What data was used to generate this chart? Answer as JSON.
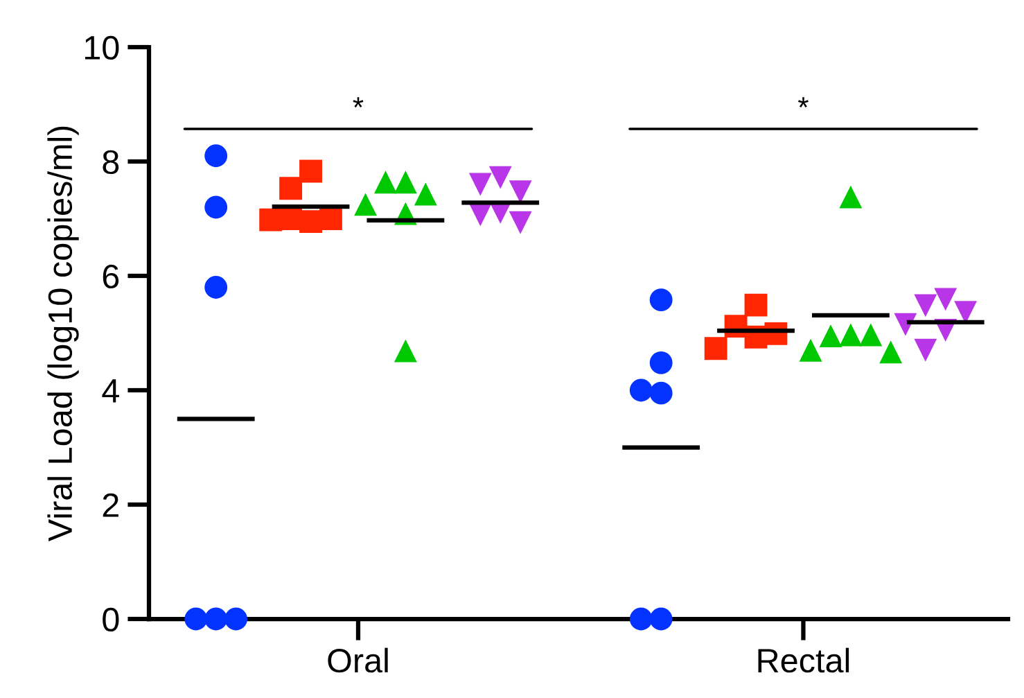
{
  "chart_data": {
    "type": "scatter",
    "ylabel": "Viral Load (log10 copies/ml)",
    "categories": [
      "Oral",
      "Rectal"
    ],
    "ylim": [
      0,
      10
    ],
    "yticks": [
      0,
      2,
      4,
      6,
      8,
      10
    ],
    "grid": false,
    "legend": false,
    "annotations": [
      "*",
      "*"
    ],
    "series": [
      {
        "color": "#0433ff",
        "marker": "circle",
        "x": [
          "Oral",
          "Oral",
          "Oral",
          "Oral",
          "Oral",
          "Oral",
          "Rectal",
          "Rectal",
          "Rectal",
          "Rectal",
          "Rectal",
          "Rectal"
        ],
        "values": [
          8.1,
          7.2,
          5.8,
          0,
          0,
          0,
          5.58,
          4.48,
          3.95,
          4.0,
          0,
          0
        ]
      },
      {
        "color": "#ff2600",
        "marker": "square",
        "x": [
          "Oral",
          "Oral",
          "Oral",
          "Oral",
          "Oral",
          "Oral",
          "Rectal",
          "Rectal",
          "Rectal",
          "Rectal",
          "Rectal"
        ],
        "values": [
          7.83,
          7.53,
          6.95,
          7.0,
          7.0,
          6.98,
          5.49,
          5.12,
          4.93,
          4.99,
          4.73
        ]
      },
      {
        "color": "#00c800",
        "marker": "triangle",
        "x": [
          "Oral",
          "Oral",
          "Oral",
          "Oral",
          "Oral",
          "Oral",
          "Rectal",
          "Rectal",
          "Rectal",
          "Rectal",
          "Rectal",
          "Rectal"
        ],
        "values": [
          7.64,
          7.64,
          7.43,
          7.25,
          7.09,
          4.69,
          7.38,
          4.97,
          4.95,
          4.97,
          4.7,
          4.67
        ]
      },
      {
        "color": "#b936e8",
        "marker": "triangle_down",
        "x": [
          "Oral",
          "Oral",
          "Oral",
          "Oral",
          "Oral",
          "Oral",
          "Rectal",
          "Rectal",
          "Rectal",
          "Rectal",
          "Rectal",
          "Rectal"
        ],
        "values": [
          7.72,
          7.6,
          7.47,
          7.11,
          7.07,
          6.93,
          5.59,
          5.48,
          5.36,
          5.15,
          5.05,
          4.7
        ]
      }
    ],
    "ref_lines": [
      {
        "axis": "y",
        "value": 3.5,
        "color": "#000000"
      },
      {
        "axis": "y",
        "value": 7.21,
        "color": "#000000"
      },
      {
        "axis": "y",
        "value": 6.97,
        "color": "#000000"
      },
      {
        "axis": "y",
        "value": 7.28,
        "color": "#000000"
      },
      {
        "axis": "y",
        "value": 3.0,
        "color": "#000000"
      },
      {
        "axis": "y",
        "value": 5.04,
        "color": "#000000"
      },
      {
        "axis": "y",
        "value": 5.31,
        "color": "#000000"
      },
      {
        "axis": "y",
        "value": 5.19,
        "color": "#000000"
      }
    ]
  }
}
